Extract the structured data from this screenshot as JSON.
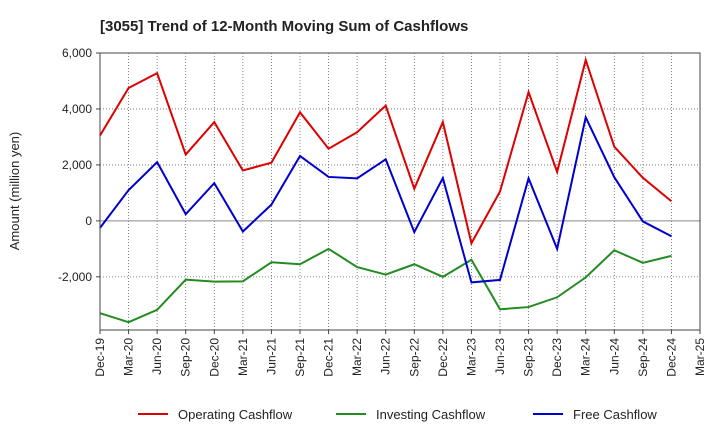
{
  "chart_data": {
    "type": "line",
    "title": "[3055]  Trend of 12-Month Moving Sum of Cashflows",
    "xlabel": "",
    "ylabel": "Amount (million yen)",
    "ylim": [
      -3900,
      6000
    ],
    "yticks": [
      6000,
      4000,
      2000,
      0,
      -2000
    ],
    "ytick_labels": [
      "6,000",
      "4,000",
      "2,000",
      "0",
      "-2,000"
    ],
    "categories": [
      "Dec-19",
      "Mar-20",
      "Jun-20",
      "Sep-20",
      "Dec-20",
      "Mar-21",
      "Jun-21",
      "Sep-21",
      "Dec-21",
      "Mar-22",
      "Jun-22",
      "Sep-22",
      "Dec-22",
      "Mar-23",
      "Jun-23",
      "Sep-23",
      "Dec-23",
      "Mar-24",
      "Jun-24",
      "Sep-24",
      "Dec-24",
      "Mar-25"
    ],
    "grid": true,
    "legend_position": "bottom",
    "series": [
      {
        "name": "Operating Cashflow",
        "color": "#dd0000",
        "values": [
          3050,
          4750,
          5280,
          2370,
          3530,
          1800,
          2080,
          3880,
          2580,
          3170,
          4120,
          1150,
          3530,
          -800,
          1050,
          4600,
          1750,
          5750,
          2650,
          1540,
          700,
          null
        ]
      },
      {
        "name": "Investing Cashflow",
        "color": "#228b22",
        "values": [
          -3300,
          -3620,
          -3180,
          -2100,
          -2170,
          -2160,
          -1480,
          -1550,
          -1000,
          -1650,
          -1920,
          -1550,
          -2000,
          -1390,
          -3160,
          -3080,
          -2730,
          -2020,
          -1050,
          -1500,
          -1250,
          null
        ]
      },
      {
        "name": "Free Cashflow",
        "color": "#0000cc",
        "values": [
          -250,
          1100,
          2100,
          240,
          1350,
          -380,
          580,
          2320,
          1570,
          1520,
          2200,
          -400,
          1530,
          -2200,
          -2110,
          1520,
          -1000,
          3700,
          1560,
          -20,
          -550,
          null
        ]
      }
    ]
  }
}
